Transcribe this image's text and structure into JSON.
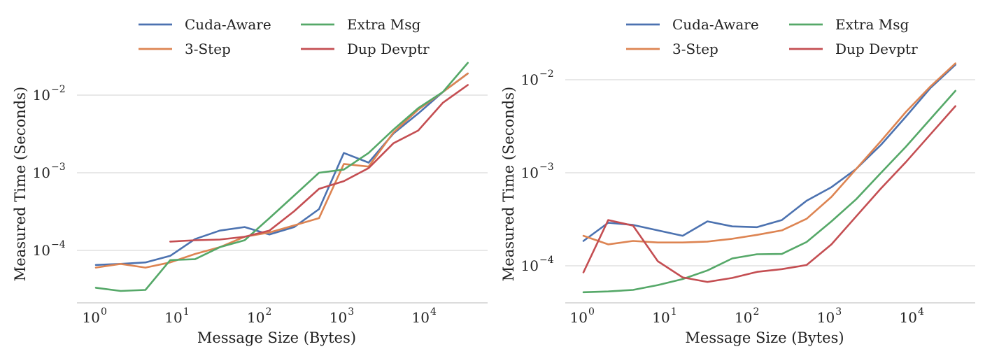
{
  "chart_data": [
    {
      "type": "line",
      "title": "",
      "xlabel": "Message Size (Bytes)",
      "ylabel": "Measured Time (Seconds)",
      "xscale": "log",
      "yscale": "log",
      "xlim": [
        0.6,
        50000
      ],
      "ylim": [
        1.5e-05,
        0.04
      ],
      "xticks": [
        {
          "base": "10",
          "exp": "0",
          "value": 1
        },
        {
          "base": "10",
          "exp": "1",
          "value": 10
        },
        {
          "base": "10",
          "exp": "2",
          "value": 100
        },
        {
          "base": "10",
          "exp": "3",
          "value": 1000
        },
        {
          "base": "10",
          "exp": "4",
          "value": 10000
        }
      ],
      "yticks": [
        {
          "base": "10",
          "exp": "−4",
          "value": 0.0001
        },
        {
          "base": "10",
          "exp": "−3",
          "value": 0.001
        },
        {
          "base": "10",
          "exp": "−2",
          "value": 0.01
        }
      ],
      "grid": "horizontal",
      "legend": "top",
      "series": [
        {
          "name": "Cuda-Aware",
          "color": "#4c72b0",
          "x": [
            1,
            2,
            4,
            8,
            16,
            32,
            64,
            128,
            256,
            512,
            1024,
            2048,
            4096,
            8192,
            16384,
            32768
          ],
          "y": [
            6.5e-05,
            6.7e-05,
            7e-05,
            8.5e-05,
            0.00014,
            0.00018,
            0.0002,
            0.00016,
            0.0002,
            0.00034,
            0.0018,
            0.00135,
            0.0032,
            0.0058,
            0.011,
            0.019
          ]
        },
        {
          "name": "3-Step",
          "color": "#dd8452",
          "x": [
            1,
            2,
            4,
            8,
            16,
            32,
            64,
            128,
            256,
            512,
            1024,
            2048,
            4096,
            8192,
            16384,
            32768
          ],
          "y": [
            6e-05,
            6.7e-05,
            6e-05,
            7e-05,
            9e-05,
            0.00011,
            0.00015,
            0.00017,
            0.00021,
            0.00026,
            0.0013,
            0.0012,
            0.0033,
            0.0065,
            0.011,
            0.019
          ]
        },
        {
          "name": "Extra Msg",
          "color": "#55a868",
          "x": [
            1,
            2,
            4,
            8,
            16,
            32,
            64,
            128,
            256,
            512,
            1024,
            2048,
            4096,
            8192,
            16384,
            32768
          ],
          "y": [
            3.3e-05,
            3e-05,
            3.1e-05,
            7.5e-05,
            7.7e-05,
            0.00011,
            0.000135,
            0.00026,
            0.00051,
            0.001,
            0.0011,
            0.0018,
            0.0036,
            0.0068,
            0.011,
            0.026
          ]
        },
        {
          "name": "Dup Devptr",
          "color": "#c44e52",
          "x": [
            8,
            16,
            32,
            64,
            128,
            256,
            512,
            1024,
            2048,
            4096,
            8192,
            16384,
            32768
          ],
          "y": [
            0.00013,
            0.000135,
            0.000138,
            0.00015,
            0.00018,
            0.00032,
            0.00062,
            0.00078,
            0.00115,
            0.0024,
            0.0035,
            0.008,
            0.0135
          ]
        }
      ]
    },
    {
      "type": "line",
      "title": "",
      "xlabel": "Message Size (Bytes)",
      "ylabel": "Measured Time (Seconds)",
      "xscale": "log",
      "yscale": "log",
      "xlim": [
        0.6,
        50000
      ],
      "ylim": [
        4e-05,
        0.02
      ],
      "xticks": [
        {
          "base": "10",
          "exp": "0",
          "value": 1
        },
        {
          "base": "10",
          "exp": "1",
          "value": 10
        },
        {
          "base": "10",
          "exp": "2",
          "value": 100
        },
        {
          "base": "10",
          "exp": "3",
          "value": 1000
        },
        {
          "base": "10",
          "exp": "4",
          "value": 10000
        }
      ],
      "yticks": [
        {
          "base": "10",
          "exp": "−4",
          "value": 0.0001
        },
        {
          "base": "10",
          "exp": "−3",
          "value": 0.001
        },
        {
          "base": "10",
          "exp": "−2",
          "value": 0.01
        }
      ],
      "grid": "horizontal",
      "legend": "top",
      "series": [
        {
          "name": "Cuda-Aware",
          "color": "#4c72b0",
          "x": [
            1,
            2,
            4,
            8,
            16,
            32,
            64,
            128,
            256,
            512,
            1024,
            2048,
            4096,
            8192,
            16384,
            32768
          ],
          "y": [
            0.000185,
            0.00029,
            0.000275,
            0.00024,
            0.00021,
            0.0003,
            0.000265,
            0.00026,
            0.00031,
            0.0005,
            0.0007,
            0.0011,
            0.002,
            0.004,
            0.0082,
            0.0145
          ]
        },
        {
          "name": "3-Step",
          "color": "#dd8452",
          "x": [
            1,
            2,
            4,
            8,
            16,
            32,
            64,
            128,
            256,
            512,
            1024,
            2048,
            4096,
            8192,
            16384,
            32768
          ],
          "y": [
            0.00021,
            0.00017,
            0.000185,
            0.000178,
            0.000178,
            0.000182,
            0.000195,
            0.000215,
            0.00024,
            0.00032,
            0.00055,
            0.0011,
            0.0022,
            0.0045,
            0.0085,
            0.015
          ]
        },
        {
          "name": "Extra Msg",
          "color": "#55a868",
          "x": [
            1,
            2,
            4,
            8,
            16,
            32,
            64,
            128,
            256,
            512,
            1024,
            2048,
            4096,
            8192,
            16384,
            32768
          ],
          "y": [
            5.2e-05,
            5.3e-05,
            5.5e-05,
            6.2e-05,
            7.2e-05,
            8.9e-05,
            0.00012,
            0.000133,
            0.000134,
            0.00018,
            0.0003,
            0.00052,
            0.001,
            0.0019,
            0.0038,
            0.0076
          ]
        },
        {
          "name": "Dup Devptr",
          "color": "#c44e52",
          "x": [
            1,
            2,
            4,
            8,
            16,
            32,
            64,
            128,
            256,
            512,
            1024,
            2048,
            4096,
            8192,
            16384,
            32768
          ],
          "y": [
            8.5e-05,
            0.00031,
            0.00027,
            0.000112,
            7.5e-05,
            6.7e-05,
            7.4e-05,
            8.6e-05,
            9.2e-05,
            0.000102,
            0.00017,
            0.00034,
            0.00068,
            0.0013,
            0.0026,
            0.0052
          ]
        }
      ]
    }
  ]
}
